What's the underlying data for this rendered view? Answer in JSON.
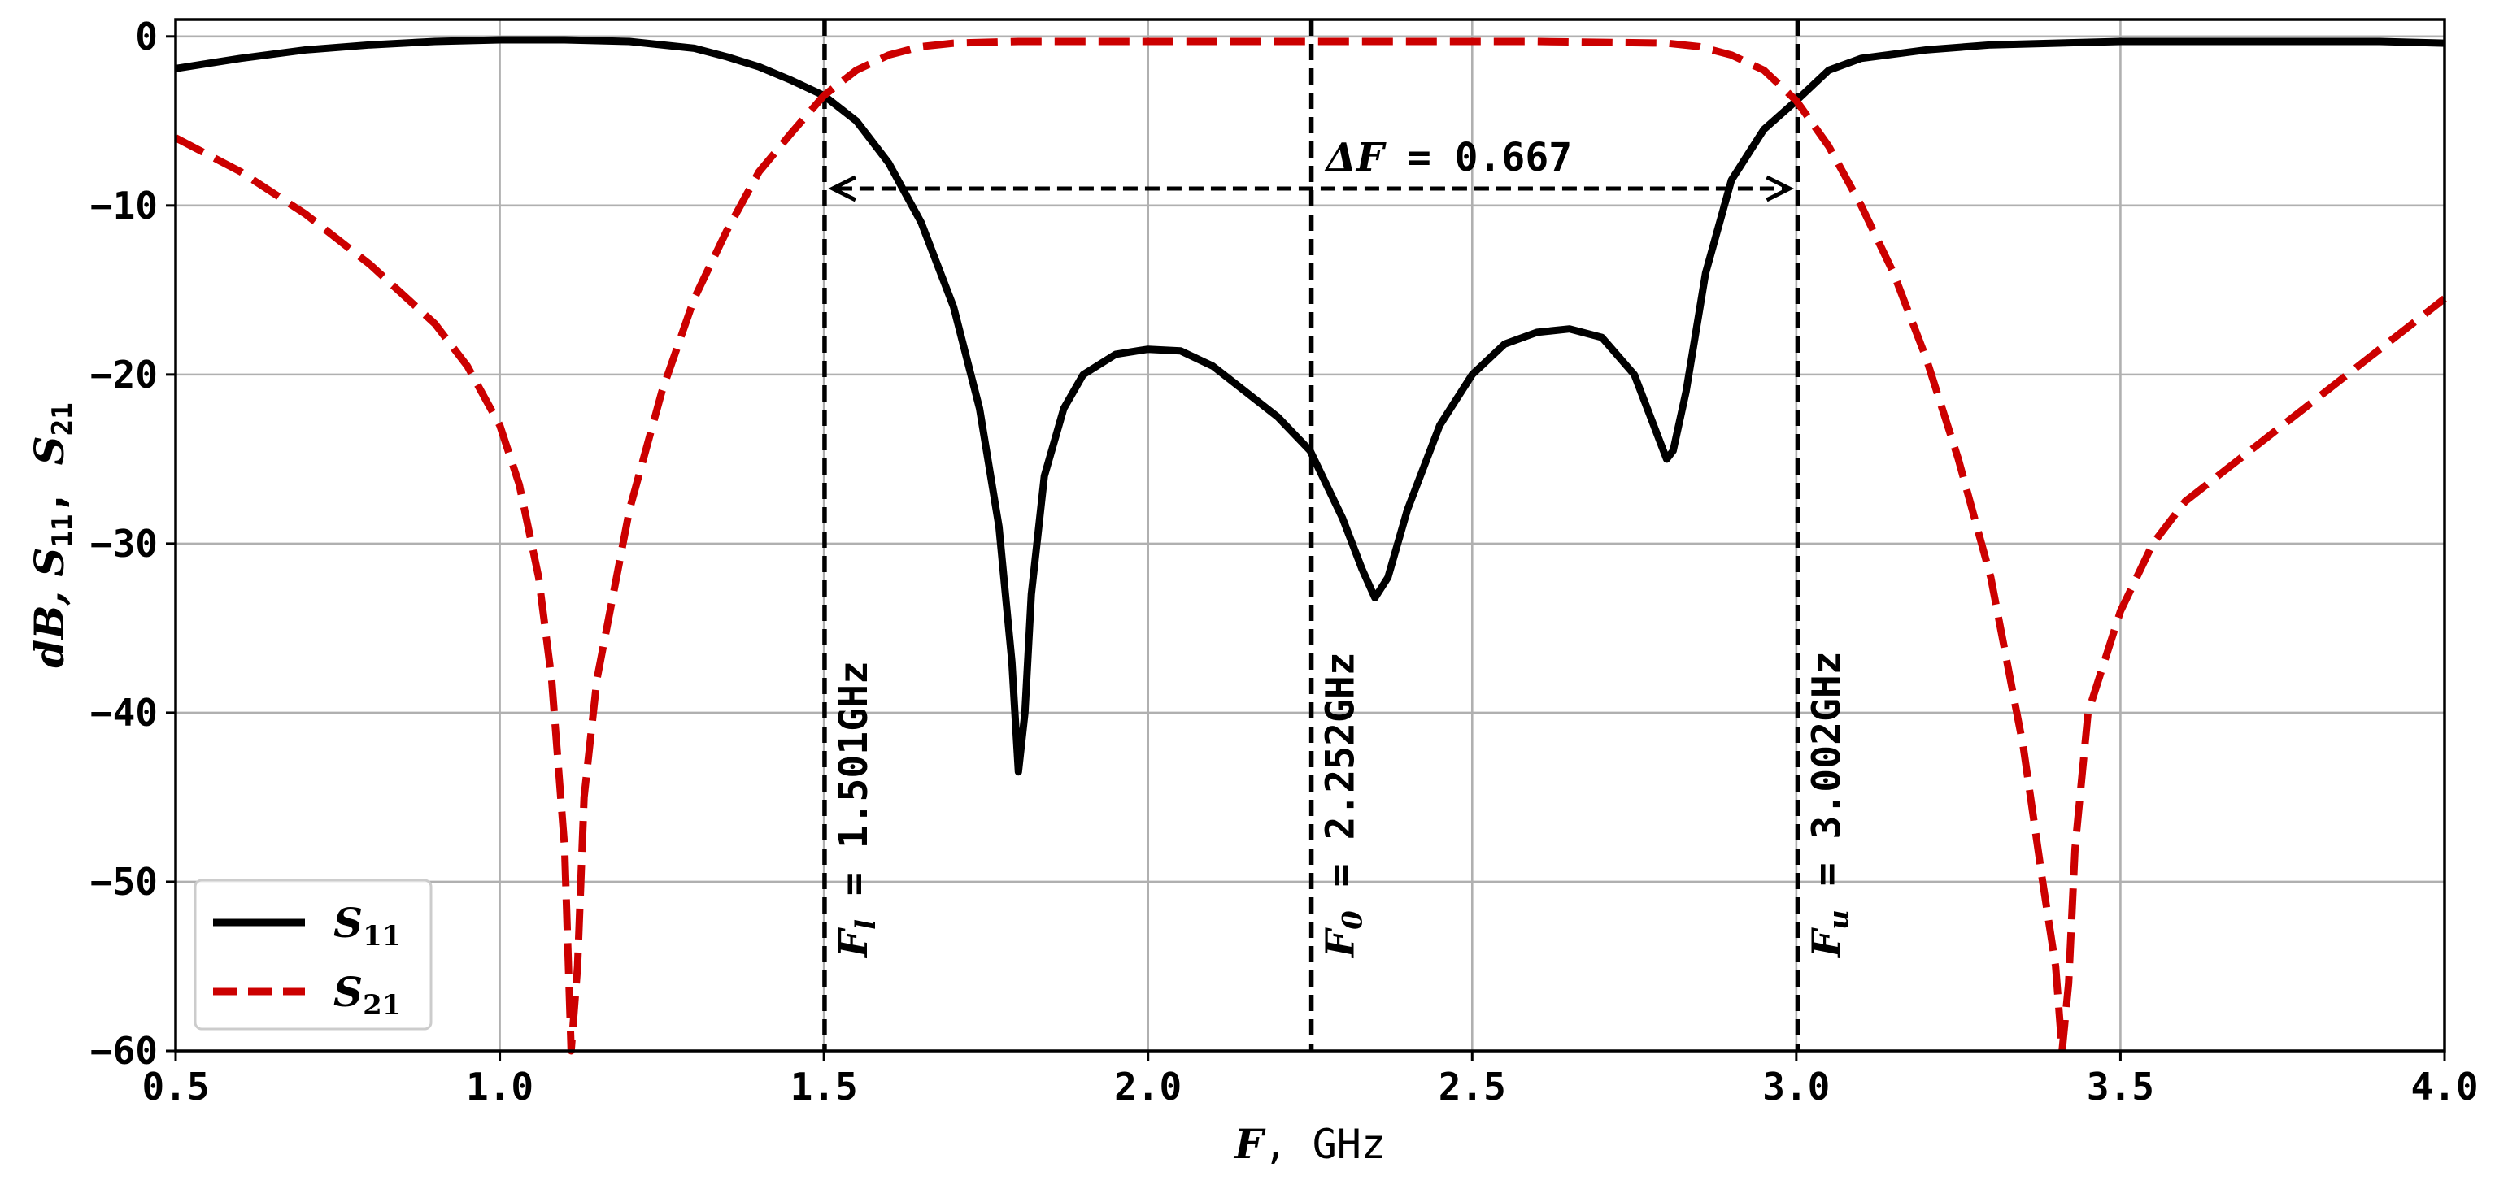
{
  "chart_data": {
    "type": "line",
    "xlabel": {
      "main": "F",
      "unit": ", GHz"
    },
    "ylabel": {
      "parts": [
        "dB, ",
        "S",
        "11",
        ", ",
        "S",
        "21"
      ]
    },
    "xlim": [
      0.5,
      4.0
    ],
    "ylim": [
      -60,
      1
    ],
    "xticks": [
      0.5,
      1.0,
      1.5,
      2.0,
      2.5,
      3.0,
      3.5,
      4.0
    ],
    "xtick_labels": [
      "0.5",
      "1.0",
      "1.5",
      "2.0",
      "2.5",
      "3.0",
      "3.5",
      "4.0"
    ],
    "yticks": [
      0,
      -10,
      -20,
      -30,
      -40,
      -50,
      -60
    ],
    "ytick_labels": [
      "0",
      "−10",
      "−20",
      "−30",
      "−40",
      "−50",
      "−60"
    ],
    "grid": true,
    "legend_position": "lower-left",
    "series": [
      {
        "name": "S11",
        "legend_main": "S",
        "legend_sub": "11",
        "color": "#000000",
        "style": "solid",
        "x": [
          0.5,
          0.6,
          0.7,
          0.8,
          0.9,
          1.0,
          1.1,
          1.2,
          1.3,
          1.35,
          1.4,
          1.45,
          1.5,
          1.55,
          1.6,
          1.65,
          1.7,
          1.74,
          1.77,
          1.79,
          1.8,
          1.81,
          1.82,
          1.84,
          1.87,
          1.9,
          1.95,
          2.0,
          2.05,
          2.1,
          2.15,
          2.2,
          2.25,
          2.3,
          2.33,
          2.35,
          2.37,
          2.4,
          2.45,
          2.5,
          2.55,
          2.6,
          2.65,
          2.7,
          2.75,
          2.78,
          2.8,
          2.81,
          2.83,
          2.86,
          2.9,
          2.95,
          3.0,
          3.05,
          3.1,
          3.2,
          3.3,
          3.5,
          3.7,
          3.9,
          4.0
        ],
        "y": [
          -1.9,
          -1.3,
          -0.8,
          -0.5,
          -0.3,
          -0.2,
          -0.2,
          -0.3,
          -0.7,
          -1.2,
          -1.8,
          -2.6,
          -3.5,
          -5.0,
          -7.5,
          -11.0,
          -16.0,
          -22.0,
          -29.0,
          -37.0,
          -43.5,
          -40.0,
          -33.0,
          -26.0,
          -22.0,
          -20.0,
          -18.8,
          -18.5,
          -18.6,
          -19.5,
          -21.0,
          -22.5,
          -24.5,
          -28.5,
          -31.5,
          -33.2,
          -32.0,
          -28.0,
          -23.0,
          -20.0,
          -18.2,
          -17.5,
          -17.3,
          -17.8,
          -20.0,
          -23.0,
          -25.0,
          -24.5,
          -21.0,
          -14.0,
          -8.5,
          -5.5,
          -3.8,
          -2.0,
          -1.3,
          -0.8,
          -0.5,
          -0.3,
          -0.3,
          -0.3,
          -0.4
        ]
      },
      {
        "name": "S21",
        "legend_main": "S",
        "legend_sub": "21",
        "color": "#cc0000",
        "style": "dashed",
        "x": [
          0.5,
          0.6,
          0.7,
          0.8,
          0.9,
          0.95,
          1.0,
          1.03,
          1.06,
          1.08,
          1.1,
          1.11,
          1.12,
          1.13,
          1.15,
          1.18,
          1.2,
          1.25,
          1.3,
          1.35,
          1.4,
          1.45,
          1.5,
          1.55,
          1.6,
          1.65,
          1.7,
          1.8,
          1.9,
          2.0,
          2.2,
          2.4,
          2.6,
          2.8,
          2.85,
          2.9,
          2.95,
          3.0,
          3.05,
          3.1,
          3.15,
          3.2,
          3.25,
          3.3,
          3.35,
          3.38,
          3.4,
          3.41,
          3.42,
          3.43,
          3.45,
          3.5,
          3.55,
          3.6,
          3.7,
          3.8,
          3.9,
          4.0
        ],
        "y": [
          -6.0,
          -8.0,
          -10.5,
          -13.5,
          -17.0,
          -19.5,
          -23.0,
          -26.5,
          -32.0,
          -38.0,
          -48.0,
          -60.0,
          -55.0,
          -45.0,
          -38.0,
          -32.0,
          -28.0,
          -21.0,
          -15.5,
          -11.5,
          -8.0,
          -5.7,
          -3.5,
          -2.0,
          -1.1,
          -0.6,
          -0.4,
          -0.3,
          -0.3,
          -0.3,
          -0.3,
          -0.3,
          -0.3,
          -0.4,
          -0.6,
          -1.1,
          -2.0,
          -3.8,
          -6.5,
          -10.0,
          -14.0,
          -19.0,
          -25.0,
          -32.0,
          -42.0,
          -50.0,
          -55.0,
          -60.0,
          -56.0,
          -48.0,
          -40.0,
          -34.0,
          -30.0,
          -27.5,
          -24.5,
          -21.5,
          -18.5,
          -15.5
        ]
      }
    ],
    "markers": [
      {
        "x": 1.501,
        "label_main": "F",
        "label_sub": "l",
        "label_value": " = 1.501GHz"
      },
      {
        "x": 2.252,
        "label_main": "F",
        "label_sub": "0",
        "label_value": " = 2.252GHz"
      },
      {
        "x": 3.002,
        "label_main": "F",
        "label_sub": "u",
        "label_value": " = 3.002GHz"
      }
    ],
    "bandwidth": {
      "x_from": 1.501,
      "x_to": 3.002,
      "y": -9,
      "label_main": "ΔF",
      "label_value": " = 0.667"
    }
  }
}
